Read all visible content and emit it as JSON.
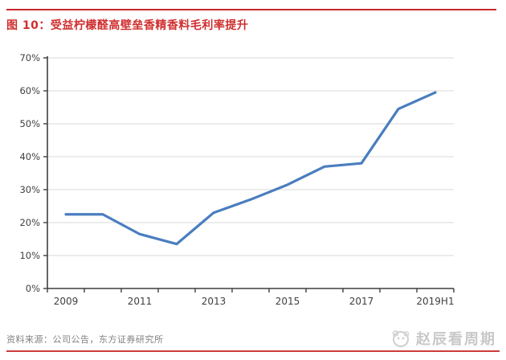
{
  "header": {
    "title": "图 10：受益柠檬醛高壁垒香精香料毛利率提升"
  },
  "footer": {
    "source": "资料来源：公司公告，东方证券研究所",
    "watermark": "赵辰看周期"
  },
  "colors": {
    "accent_red": "#c9282d",
    "title_red": "#d02f2f",
    "line_blue": "#4a7ebf",
    "grid_gray": "#d9d9d9",
    "axis_gray": "#3f3f3f",
    "tick_label_gray": "#404040",
    "source_gray": "#808080",
    "watermark_gray": "#c8c8c8"
  },
  "chart_data": {
    "type": "line",
    "title": "受益柠檬醛高壁垒香精香料毛利率提升",
    "categories": [
      "2009",
      "2010",
      "2011",
      "2012",
      "2013",
      "2014",
      "2015",
      "2016",
      "2017",
      "2018",
      "2019H1"
    ],
    "values": [
      22.5,
      22.5,
      16.5,
      13.5,
      23,
      27,
      31.5,
      37,
      38,
      54.5,
      59.5
    ],
    "unit": "%",
    "ylim": [
      0,
      70
    ],
    "y_step": 10,
    "y_tick_labels": [
      "0%",
      "10%",
      "20%",
      "30%",
      "40%",
      "50%",
      "60%",
      "70%"
    ],
    "x_tick_labels": [
      "2009",
      "2011",
      "2013",
      "2015",
      "2017",
      "2019H1"
    ],
    "x_label_every": 2,
    "grid": "horizontal",
    "legend": "none"
  }
}
